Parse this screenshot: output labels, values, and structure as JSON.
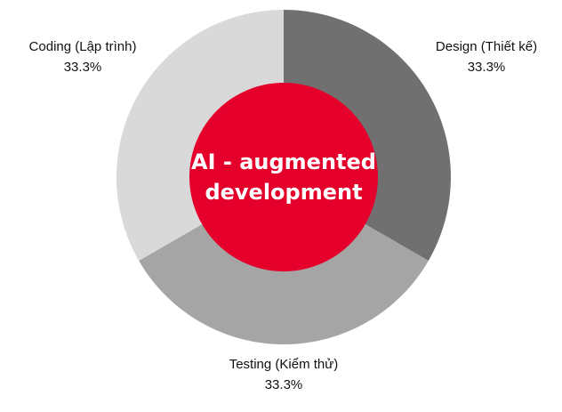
{
  "chart_data": {
    "type": "pie",
    "style": "donut",
    "center_text": [
      "AI - augmented",
      "development"
    ],
    "center_color": "#E4002B",
    "slices": [
      {
        "label": "Design (Thiết kế)",
        "value": 33.3,
        "display": "33.3%",
        "color": "#707070"
      },
      {
        "label": "Testing (Kiểm thử)",
        "value": 33.3,
        "display": "33.3%",
        "color": "#A5A5A5"
      },
      {
        "label": "Coding (Lập trình)",
        "value": 33.3,
        "display": "33.3%",
        "color": "#D9D9D9"
      }
    ]
  }
}
